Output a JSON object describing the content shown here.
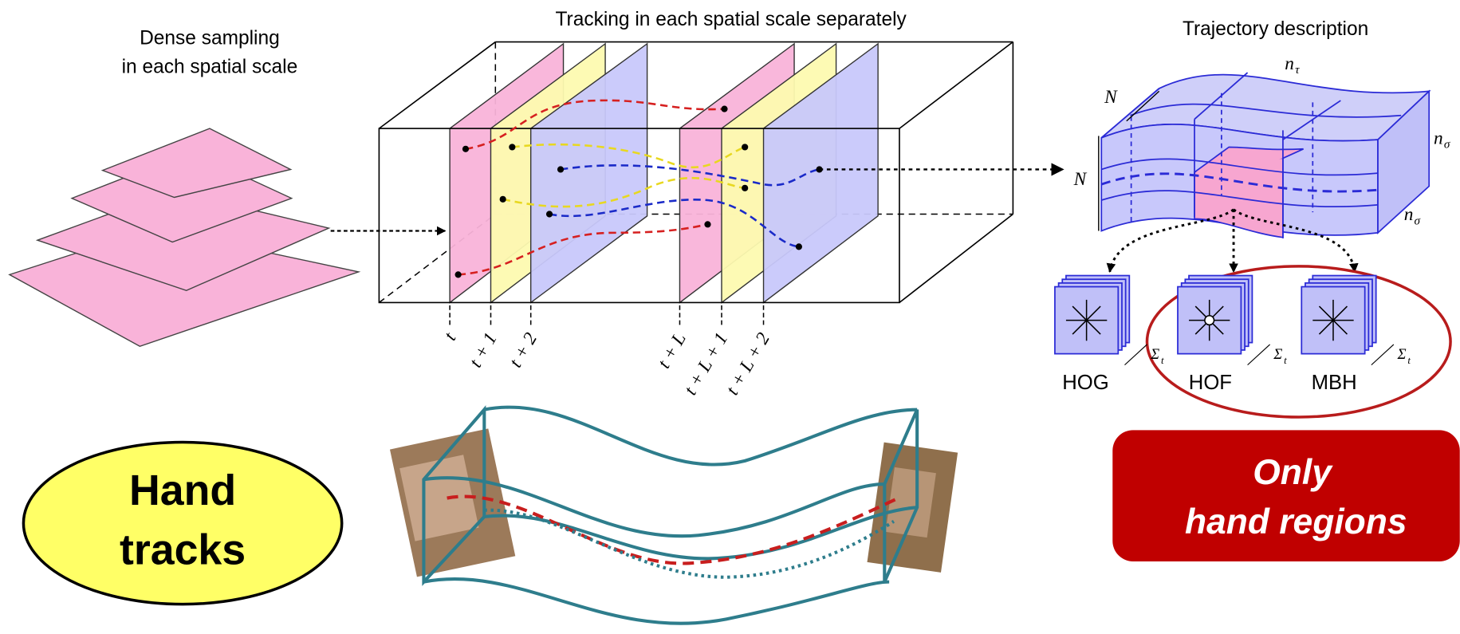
{
  "left": {
    "title_lines": [
      "Dense sampling",
      "in each spatial scale"
    ]
  },
  "middle": {
    "title": "Tracking in each spatial scale separately",
    "time_labels": [
      "t",
      "t + 1",
      "t + 2",
      "t + L",
      "t + L + 1",
      "t + L + 2"
    ]
  },
  "right": {
    "title": "Trajectory description",
    "dims": {
      "n_depth": "N",
      "n_height": "N",
      "n_tau": {
        "base": "n",
        "sub": "τ"
      },
      "n_sigma_top": {
        "base": "n",
        "sub": "σ"
      },
      "n_sigma_bottom": {
        "base": "n",
        "sub": "σ"
      }
    },
    "descriptors": [
      {
        "name": "HOG",
        "sum": {
          "base": "Σ",
          "sub": "t"
        }
      },
      {
        "name": "HOF",
        "sum": {
          "base": "Σ",
          "sub": "t"
        }
      },
      {
        "name": "MBH",
        "sum": {
          "base": "Σ",
          "sub": "t"
        }
      }
    ]
  },
  "bottom": {
    "hand_label": [
      "Hand",
      "tracks"
    ],
    "note": [
      "Only",
      "hand regions"
    ]
  }
}
